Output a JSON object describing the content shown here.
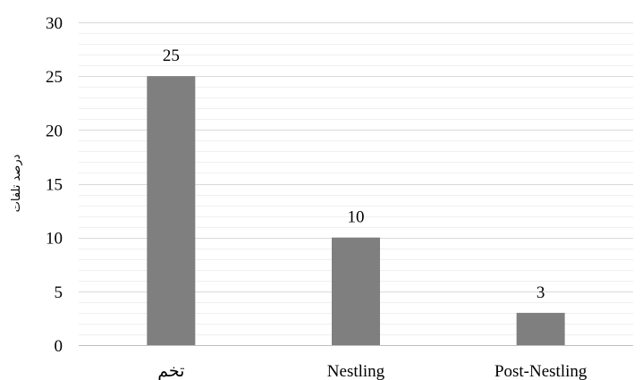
{
  "chart_data": {
    "type": "bar",
    "title": "",
    "xlabel": "",
    "ylabel": "درصد تلفات",
    "categories": [
      "تخم",
      "Nestling",
      "Post-Nestling"
    ],
    "values": [
      25,
      10,
      3
    ],
    "data_labels": [
      "25",
      "10",
      "3"
    ],
    "ylim": [
      0,
      30
    ],
    "yticks": [
      "0",
      "5",
      "10",
      "15",
      "20",
      "25",
      "30"
    ],
    "grid": true,
    "legend": "none",
    "bar_color": "#7f7f7f",
    "grid_color": "#d9d9d9",
    "minor_grid_color": "#efefef"
  }
}
